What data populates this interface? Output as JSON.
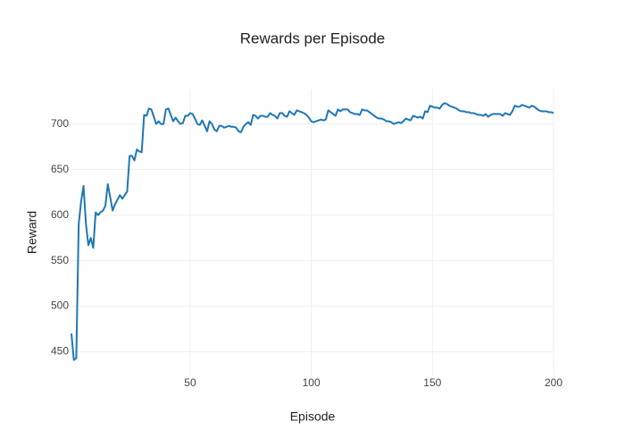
{
  "chart_data": {
    "type": "line",
    "title": "Rewards per Episode",
    "x_label": "Episode",
    "y_label": "Reward",
    "x": [
      1,
      2,
      3,
      4,
      5,
      6,
      7,
      8,
      9,
      10,
      11,
      12,
      13,
      14,
      15,
      16,
      17,
      18,
      19,
      20,
      21,
      22,
      23,
      24,
      25,
      26,
      27,
      28,
      29,
      30,
      31,
      32,
      33,
      34,
      35,
      36,
      37,
      38,
      39,
      40,
      41,
      42,
      43,
      44,
      45,
      46,
      47,
      48,
      49,
      50,
      51,
      52,
      53,
      54,
      55,
      56,
      57,
      58,
      59,
      60,
      61,
      62,
      63,
      64,
      65,
      66,
      67,
      68,
      69,
      70,
      71,
      72,
      73,
      74,
      75,
      76,
      77,
      78,
      79,
      80,
      81,
      82,
      83,
      84,
      85,
      86,
      87,
      88,
      89,
      90,
      91,
      92,
      93,
      94,
      95,
      96,
      97,
      98,
      99,
      100,
      101,
      102,
      103,
      104,
      105,
      106,
      107,
      108,
      109,
      110,
      111,
      112,
      113,
      114,
      115,
      116,
      117,
      118,
      119,
      120,
      121,
      122,
      123,
      124,
      125,
      126,
      127,
      128,
      129,
      130,
      131,
      132,
      133,
      134,
      135,
      136,
      137,
      138,
      139,
      140,
      141,
      142,
      143,
      144,
      145,
      146,
      147,
      148,
      149,
      150,
      151,
      152,
      153,
      154,
      155,
      156,
      157,
      158,
      159,
      160,
      161,
      162,
      163,
      164,
      165,
      166,
      167,
      168,
      169,
      170,
      171,
      172,
      173,
      174,
      175,
      176,
      177,
      178,
      179,
      180,
      181,
      182,
      183,
      184,
      185,
      186,
      187,
      188,
      189,
      190,
      191,
      192,
      193,
      194,
      195,
      196,
      197,
      198,
      199,
      200
    ],
    "series": [
      {
        "name": "Reward",
        "color": "#1f77b4",
        "values": [
          470,
          441,
          443,
          590,
          615,
          632,
          590,
          567,
          575,
          564,
          603,
          600,
          603,
          605,
          610,
          634,
          620,
          605,
          612,
          617,
          622,
          618,
          622,
          626,
          665,
          665,
          660,
          672,
          670,
          669,
          710,
          709,
          717,
          716,
          708,
          700,
          703,
          700,
          700,
          716,
          717,
          710,
          703,
          707,
          703,
          700,
          701,
          709,
          709,
          712,
          711,
          706,
          700,
          699,
          704,
          698,
          692,
          703,
          700,
          694,
          692,
          698,
          698,
          696,
          697,
          698,
          697,
          697,
          696,
          692,
          691,
          697,
          700,
          702,
          699,
          710,
          709,
          706,
          709,
          709,
          708,
          708,
          712,
          710,
          709,
          706,
          712,
          712,
          709,
          708,
          714,
          712,
          710,
          715,
          714,
          713,
          712,
          710,
          707,
          703,
          702,
          703,
          704,
          705,
          704,
          705,
          715,
          713,
          711,
          709,
          716,
          714,
          716,
          716,
          716,
          713,
          712,
          711,
          711,
          710,
          716,
          715,
          715,
          713,
          711,
          709,
          707,
          706,
          706,
          705,
          703,
          703,
          702,
          700,
          701,
          702,
          701,
          703,
          706,
          705,
          704,
          709,
          708,
          707,
          708,
          706,
          714,
          713,
          720,
          719,
          718,
          718,
          717,
          721,
          723,
          722,
          720,
          719,
          718,
          717,
          715,
          714,
          714,
          713,
          713,
          712,
          712,
          711,
          710,
          710,
          709,
          711,
          708,
          710,
          711,
          711,
          711,
          711,
          709,
          712,
          711,
          710,
          714,
          720,
          719,
          719,
          721,
          720,
          719,
          718,
          720,
          719,
          717,
          715,
          714,
          714,
          714,
          713,
          713,
          712
        ]
      }
    ],
    "xlim": [
      1,
      200
    ],
    "ylim": [
      424,
      738
    ],
    "xticks": [
      50,
      100,
      150,
      200
    ],
    "yticks": [
      450,
      500,
      550,
      600,
      650,
      700
    ],
    "grid": true
  }
}
